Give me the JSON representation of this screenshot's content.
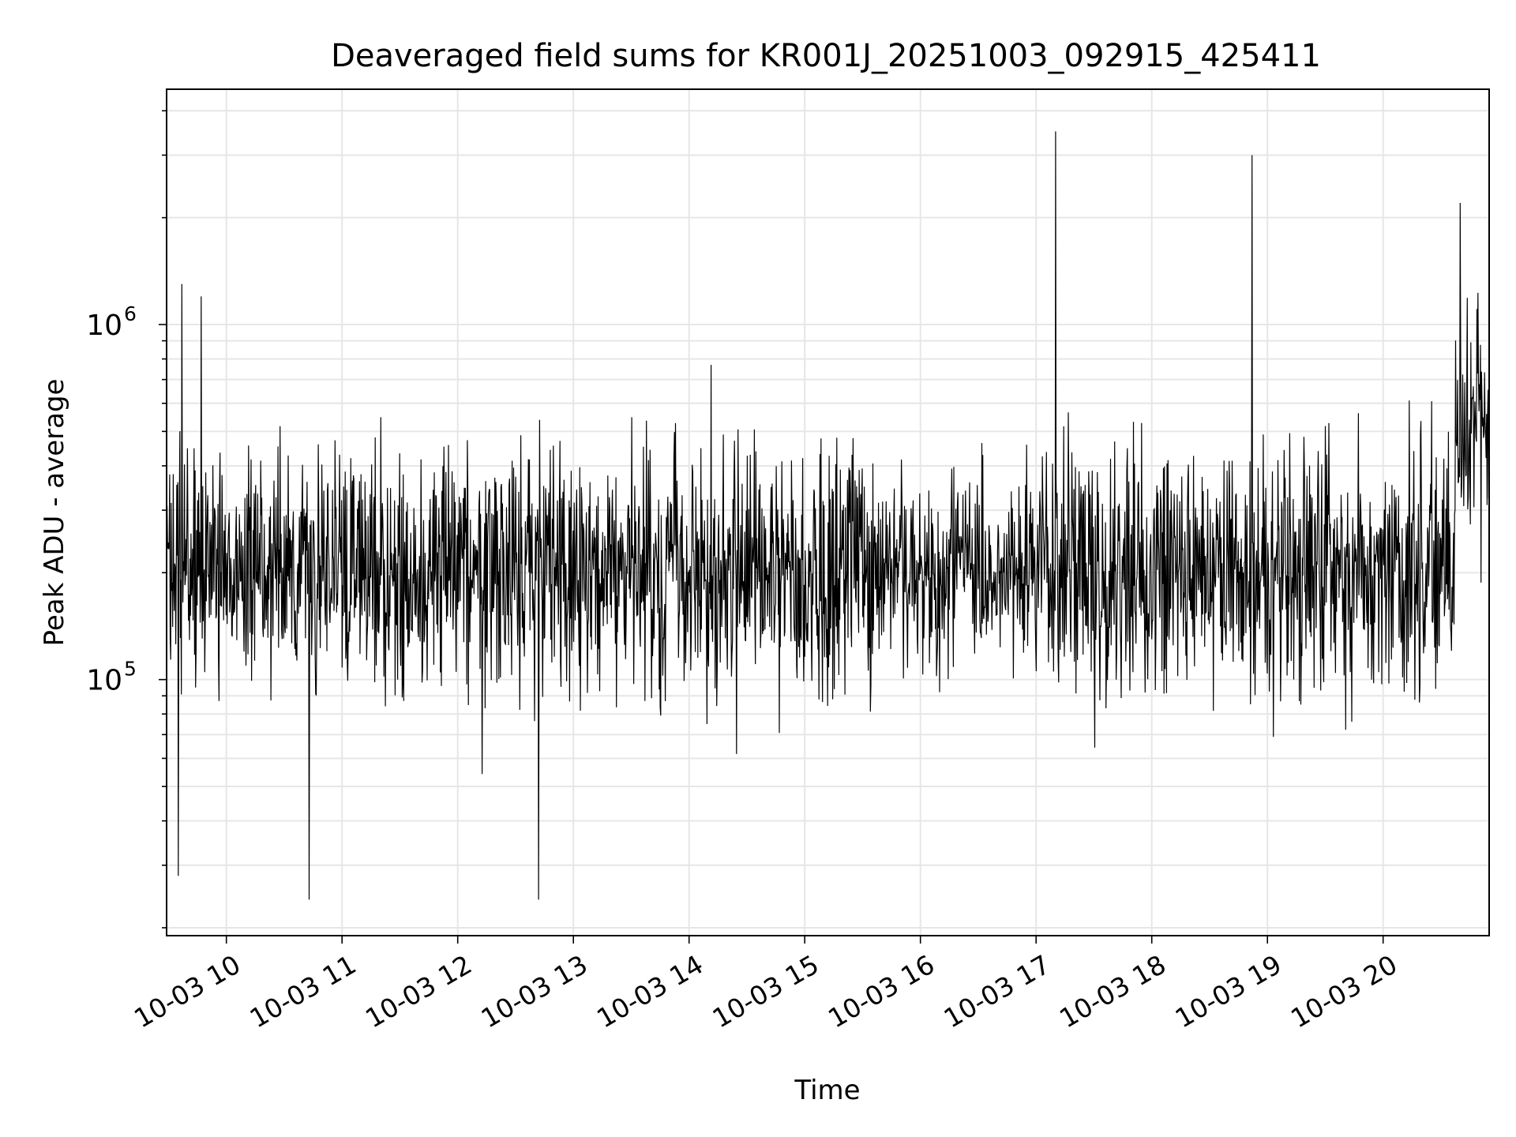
{
  "chart_data": {
    "type": "line",
    "title": "Deaveraged field sums for KR001J_20251003_092915_425411",
    "xlabel": "Time",
    "ylabel": "Peak ADU - average",
    "x_tick_labels": [
      "10-03 10",
      "10-03 11",
      "10-03 12",
      "10-03 13",
      "10-03 14",
      "10-03 15",
      "10-03 16",
      "10-03 17",
      "10-03 18",
      "10-03 19",
      "10-03 20"
    ],
    "x_tick_times": [
      "2025-10-03 10:00",
      "2025-10-03 11:00",
      "2025-10-03 12:00",
      "2025-10-03 13:00",
      "2025-10-03 14:00",
      "2025-10-03 15:00",
      "2025-10-03 16:00",
      "2025-10-03 17:00",
      "2025-10-03 18:00",
      "2025-10-03 19:00",
      "2025-10-03 20:00"
    ],
    "xlim": [
      "2025-10-03 09:29",
      "2025-10-03 20:55"
    ],
    "y_scale": "log",
    "ylim": [
      19000,
      4600000
    ],
    "y_tick_labels": [
      {
        "base": "10",
        "exp": "5",
        "value": 100000
      },
      {
        "base": "10",
        "exp": "6",
        "value": 1000000
      }
    ],
    "grid": true,
    "line_color": "#000000",
    "grid_color": "#e6e6e6",
    "series_envelope_note_values": {
      "typical_baseline": 200000,
      "spikes": [
        {
          "time": "2025-10-03 17:10",
          "value": 3500000
        },
        {
          "time": "2025-10-03 18:52",
          "value": 3000000
        },
        {
          "time": "2025-10-03 20:40",
          "value": 2200000
        },
        {
          "time": "2025-10-03 09:37",
          "value": 1300000
        },
        {
          "time": "2025-10-03 09:47",
          "value": 1200000
        }
      ],
      "dips": [
        {
          "time": "2025-10-03 10:43",
          "value": 24000
        },
        {
          "time": "2025-10-03 12:42",
          "value": 24000
        },
        {
          "time": "2025-10-03 09:35",
          "value": 28000
        }
      ]
    }
  }
}
